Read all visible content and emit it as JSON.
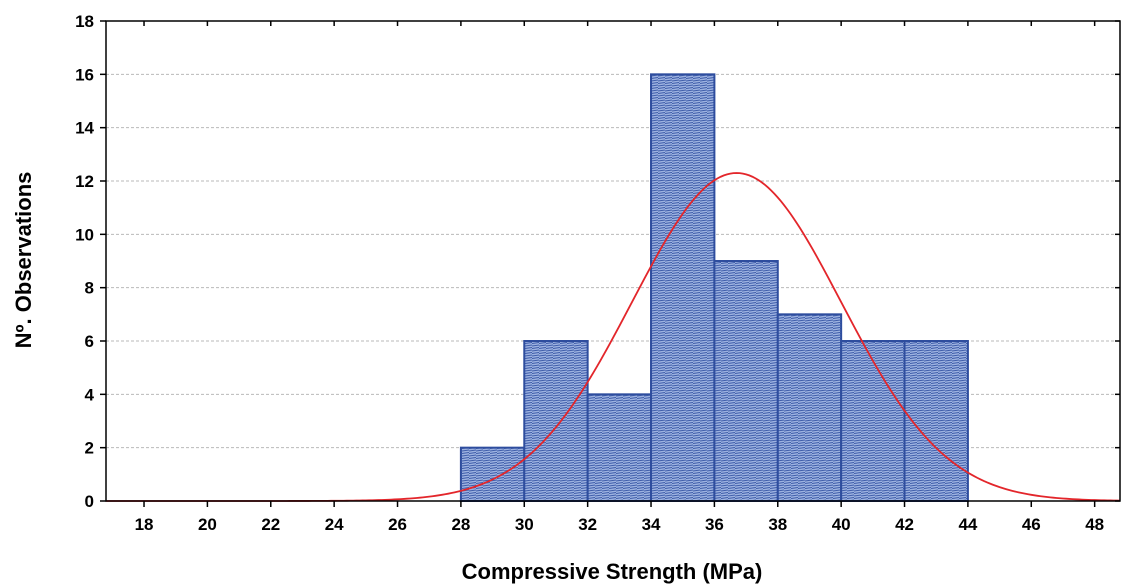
{
  "chart_data": {
    "type": "bar",
    "subtype": "histogram",
    "xlabel": "Compressive Strength  (MPa)",
    "ylabel": "Nº. Observations",
    "xlim": [
      16.8,
      48.8
    ],
    "ylim": [
      0,
      18
    ],
    "xticks": [
      18,
      20,
      22,
      24,
      26,
      28,
      30,
      32,
      34,
      36,
      38,
      40,
      42,
      44,
      46,
      48
    ],
    "yticks": [
      0,
      2,
      4,
      6,
      8,
      10,
      12,
      14,
      16,
      18
    ],
    "grid": "horizontal dashed",
    "bins": [
      {
        "from": 28,
        "to": 30,
        "count": 2
      },
      {
        "from": 30,
        "to": 32,
        "count": 6
      },
      {
        "from": 32,
        "to": 34,
        "count": 4
      },
      {
        "from": 34,
        "to": 36,
        "count": 16
      },
      {
        "from": 36,
        "to": 38,
        "count": 9
      },
      {
        "from": 38,
        "to": 40,
        "count": 7
      },
      {
        "from": 40,
        "to": 42,
        "count": 6
      },
      {
        "from": 42,
        "to": 44,
        "count": 6
      }
    ],
    "normal_curve": {
      "mean": 36.7,
      "peak": 12.3,
      "sd": 3.3
    },
    "colors": {
      "bar_fill": "#8fa6d8",
      "bar_stroke": "#2e4d9e",
      "curve": "#e3262b",
      "grid": "#b9b9b9"
    }
  }
}
